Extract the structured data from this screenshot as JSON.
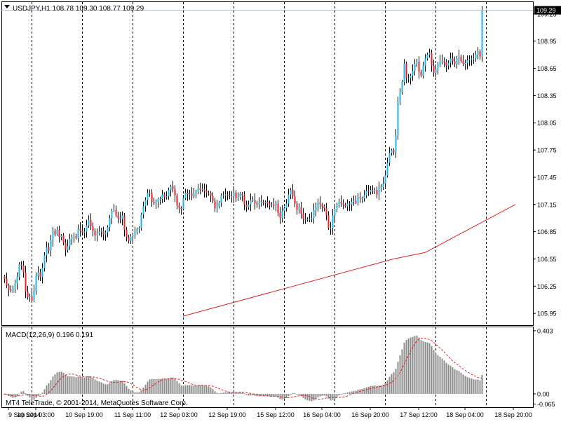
{
  "window": {
    "symbol_line": "USDJPY,H1  108.78 109.30 108.77 109.29",
    "macd_line": "MACD(12,26,9) 0.196 0.191",
    "copyright": "MT4 TeleTrade, © 2001-2014, MetaQuotes Software Corp.",
    "dropdown_icon": "triangle-down-icon"
  },
  "colors": {
    "background": "#ffffff",
    "bull": "#1fb3ec",
    "bear": "#e8202a",
    "wick": "#000000",
    "ma": "#e0221e",
    "macd_hist": "#8c8c8c",
    "macd_signal": "#e0221e",
    "bid_line": "#a8b4c0",
    "grid": "#000000",
    "current_price_box": "#000000"
  },
  "chart_data": [
    {
      "type": "candlestick",
      "title": "USDJPY,H1",
      "ohlc_label": "108.78 109.30 108.77 109.29",
      "current_price": 109.29,
      "current_price_label": "109.29",
      "ylim": [
        105.82,
        109.38
      ],
      "ytick_labels": [
        "109.25",
        "108.95",
        "108.65",
        "108.35",
        "108.05",
        "107.75",
        "107.45",
        "107.15",
        "106.85",
        "106.55",
        "106.25",
        "105.95"
      ],
      "ytick_values": [
        109.25,
        108.95,
        108.65,
        108.35,
        108.05,
        107.75,
        107.45,
        107.15,
        106.85,
        106.55,
        106.25,
        105.95
      ],
      "xtick_labels": [
        "9 Sep 2014",
        "10 Sep 03:00",
        "10 Sep 19:00",
        "11 Sep 11:00",
        "12 Sep 03:00",
        "12 Sep 19:00",
        "15 Sep 12:00",
        "16 Sep 04:00",
        "16 Sep 20:00",
        "17 Sep 12:00",
        "18 Sep 04:00",
        "18 Sep 20:00"
      ],
      "xtick_bar_index": [
        2,
        15,
        38,
        61,
        83,
        106,
        129,
        151,
        174,
        197,
        219,
        242
      ],
      "grid": "vertical dashed separators",
      "separator_bar_index": [
        13,
        37,
        61,
        85,
        109,
        133,
        157,
        181,
        205,
        229
      ],
      "close": [
        106.33,
        106.26,
        106.21,
        106.2,
        106.22,
        106.28,
        106.35,
        106.49,
        106.48,
        106.4,
        106.19,
        106.13,
        106.14,
        106.09,
        106.2,
        106.36,
        106.4,
        106.35,
        106.45,
        106.59,
        106.68,
        106.64,
        106.76,
        106.86,
        106.82,
        106.87,
        106.79,
        106.81,
        106.73,
        106.65,
        106.69,
        106.77,
        106.79,
        106.8,
        106.78,
        106.88,
        106.86,
        106.84,
        106.85,
        106.92,
        106.98,
        106.91,
        106.86,
        106.81,
        106.83,
        106.85,
        106.86,
        106.82,
        106.84,
        106.9,
        107.0,
        107.08,
        107.09,
        107.03,
        107.0,
        106.99,
        107.03,
        106.87,
        106.79,
        106.75,
        106.8,
        106.82,
        106.84,
        106.88,
        106.89,
        107.04,
        107.13,
        107.2,
        107.28,
        107.28,
        107.18,
        107.16,
        107.18,
        107.21,
        107.21,
        107.26,
        107.23,
        107.24,
        107.31,
        107.35,
        107.32,
        107.25,
        107.14,
        107.11,
        107.1,
        107.22,
        107.28,
        107.26,
        107.27,
        107.24,
        107.27,
        107.29,
        107.33,
        107.31,
        107.32,
        107.3,
        107.28,
        107.28,
        107.24,
        107.19,
        107.11,
        107.13,
        107.17,
        107.25,
        107.25,
        107.26,
        107.25,
        107.24,
        107.24,
        107.28,
        107.22,
        107.23,
        107.27,
        107.25,
        107.15,
        107.12,
        107.15,
        107.2,
        107.2,
        107.16,
        107.15,
        107.17,
        107.18,
        107.17,
        107.18,
        107.16,
        107.14,
        107.15,
        107.14,
        107.16,
        107.06,
        107.0,
        107.08,
        107.11,
        107.16,
        107.26,
        107.31,
        107.24,
        107.16,
        107.09,
        107.12,
        107.05,
        106.99,
        106.98,
        106.99,
        106.99,
        107.0,
        107.09,
        107.12,
        107.17,
        107.15,
        107.13,
        107.11,
        107.03,
        106.89,
        106.89,
        107.03,
        107.1,
        107.14,
        107.18,
        107.16,
        107.15,
        107.13,
        107.16,
        107.15,
        107.18,
        107.19,
        107.17,
        107.23,
        107.22,
        107.22,
        107.25,
        107.3,
        107.29,
        107.31,
        107.31,
        107.31,
        107.26,
        107.33,
        107.34,
        107.38,
        107.47,
        107.61,
        107.72,
        107.75,
        107.73,
        107.91,
        108.28,
        108.39,
        108.5,
        108.7,
        108.54,
        108.54,
        108.57,
        108.62,
        108.7,
        108.72,
        108.61,
        108.57,
        108.68,
        108.76,
        108.8,
        108.82,
        108.68,
        108.6,
        108.64,
        108.69,
        108.73,
        108.73,
        108.72,
        108.68,
        108.71,
        108.76,
        108.73,
        108.7,
        108.76,
        108.78,
        108.73,
        108.7,
        108.71,
        108.74,
        108.75,
        108.76,
        108.76,
        108.8,
        108.84,
        108.78,
        109.29
      ],
      "ma_line": {
        "color": "#e0221e",
        "values_at_bar": [
          {
            "bar": 85,
            "value": 105.92
          },
          {
            "bar": 185,
            "value": 106.55
          },
          {
            "bar": 200,
            "value": 106.62
          },
          {
            "bar": 243,
            "value": 107.15
          }
        ]
      }
    },
    {
      "type": "bar",
      "title": "MACD(12,26,9)",
      "values_label": "0.196 0.191",
      "macd": 0.196,
      "signal": 0.191,
      "ylim": [
        -0.085,
        0.425
      ],
      "ytick_labels": [
        "0.403",
        "0.00",
        "-0.065"
      ],
      "ytick_values": [
        0.403,
        0.0,
        -0.065
      ],
      "series": [
        {
          "name": "MACD",
          "style": "histogram"
        },
        {
          "name": "Signal",
          "style": "dashed-line"
        }
      ]
    }
  ]
}
